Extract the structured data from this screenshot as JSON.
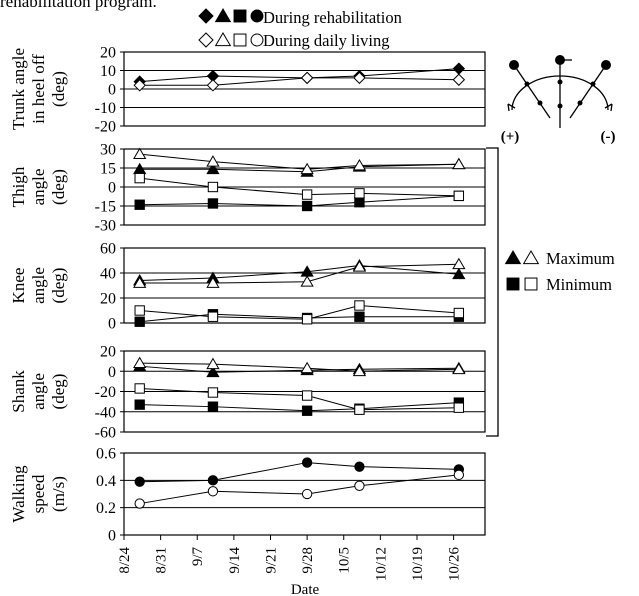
{
  "top_caption": "rehabilitation program.",
  "legend_conditions": {
    "rehab_label": "During rehabilitation",
    "daily_label": "During daily living"
  },
  "legend_maxmin": {
    "max_label": "Maximum",
    "min_label": "Minimum"
  },
  "sign_labels": {
    "plus": "(+)",
    "minus": "(-)"
  },
  "x_axis": {
    "title": "Date",
    "ticks": [
      "8/24",
      "8/31",
      "9/7",
      "9/14",
      "9/21",
      "9/28",
      "10/5",
      "10/12",
      "10/19",
      "10/26"
    ]
  },
  "colors": {
    "ink": "#000000",
    "background": "#ffffff"
  },
  "chart_data": [
    {
      "type": "line",
      "ylabel_lines": [
        "Trunk angle",
        "in heel off",
        "(deg)"
      ],
      "ylim": [
        -20,
        20
      ],
      "yticks": [
        -20,
        -10,
        0,
        10,
        20
      ],
      "grid_y": [
        -10,
        10
      ],
      "series": [
        {
          "name": "During rehabilitation",
          "marker": "diamond",
          "filled": true,
          "x": [
            "8/27",
            "9/10",
            "9/28",
            "10/8",
            "10/27"
          ],
          "values": [
            4,
            7,
            6,
            7,
            11
          ]
        },
        {
          "name": "During daily living",
          "marker": "diamond",
          "filled": false,
          "x": [
            "8/27",
            "9/10",
            "9/28",
            "10/8",
            "10/27"
          ],
          "values": [
            2,
            2,
            6,
            6,
            5
          ]
        }
      ]
    },
    {
      "type": "line",
      "ylabel_lines": [
        "Thigh",
        "angle",
        "(deg)"
      ],
      "ylim": [
        -30,
        30
      ],
      "yticks": [
        -30,
        -15,
        0,
        15,
        30
      ],
      "ytick_labels": [
        "-30",
        "-15",
        "0",
        "15",
        "30"
      ],
      "grid_y": [
        -15,
        15
      ],
      "series": [
        {
          "marker": "triangle",
          "filled": true,
          "x": [
            "8/27",
            "9/10",
            "9/28",
            "10/8",
            "10/27"
          ],
          "values": [
            14,
            14,
            12,
            16,
            18
          ]
        },
        {
          "marker": "triangle",
          "filled": false,
          "x": [
            "8/27",
            "9/10",
            "9/28",
            "10/8",
            "10/27"
          ],
          "values": [
            26,
            20,
            14,
            17,
            18
          ]
        },
        {
          "marker": "square",
          "filled": true,
          "x": [
            "8/27",
            "9/10",
            "9/28",
            "10/8",
            "10/27"
          ],
          "values": [
            -14,
            -13,
            -15,
            -12,
            -7
          ]
        },
        {
          "marker": "square",
          "filled": false,
          "x": [
            "8/27",
            "9/10",
            "9/28",
            "10/8",
            "10/27"
          ],
          "values": [
            7,
            0,
            -6,
            -5,
            -7
          ]
        }
      ]
    },
    {
      "type": "line",
      "ylabel_lines": [
        "Knee",
        "angle",
        "(deg)"
      ],
      "ylim": [
        0,
        60
      ],
      "yticks": [
        0,
        20,
        40,
        60
      ],
      "grid_y": [
        20,
        40
      ],
      "series": [
        {
          "marker": "triangle",
          "filled": true,
          "x": [
            "8/27",
            "9/10",
            "9/28",
            "10/8",
            "10/27"
          ],
          "values": [
            34,
            36,
            41,
            46,
            39
          ]
        },
        {
          "marker": "triangle",
          "filled": false,
          "x": [
            "8/27",
            "9/10",
            "9/28",
            "10/8",
            "10/27"
          ],
          "values": [
            32,
            32,
            33,
            45,
            47
          ]
        },
        {
          "marker": "square",
          "filled": true,
          "x": [
            "8/27",
            "9/10",
            "9/28",
            "10/8",
            "10/27"
          ],
          "values": [
            1,
            7,
            4,
            5,
            5
          ]
        },
        {
          "marker": "square",
          "filled": false,
          "x": [
            "8/27",
            "9/10",
            "9/28",
            "10/8",
            "10/27"
          ],
          "values": [
            10,
            5,
            3,
            14,
            8
          ]
        }
      ]
    },
    {
      "type": "line",
      "ylabel_lines": [
        "Shank",
        "angle",
        "(deg)"
      ],
      "ylim": [
        -60,
        20
      ],
      "yticks": [
        -60,
        -40,
        -20,
        0,
        20
      ],
      "grid_y": [
        -40,
        -20
      ],
      "series": [
        {
          "marker": "triangle",
          "filled": true,
          "x": [
            "8/27",
            "9/10",
            "9/28",
            "10/8",
            "10/27"
          ],
          "values": [
            5,
            -1,
            1,
            2,
            3
          ]
        },
        {
          "marker": "triangle",
          "filled": false,
          "x": [
            "8/27",
            "9/10",
            "9/28",
            "10/8",
            "10/27"
          ],
          "values": [
            8,
            7,
            3,
            0,
            2
          ]
        },
        {
          "marker": "square",
          "filled": true,
          "x": [
            "8/27",
            "9/10",
            "9/28",
            "10/8",
            "10/27"
          ],
          "values": [
            -33,
            -35,
            -39,
            -37,
            -31
          ]
        },
        {
          "marker": "square",
          "filled": false,
          "x": [
            "8/27",
            "9/10",
            "9/28",
            "10/8",
            "10/27"
          ],
          "values": [
            -17,
            -21,
            -24,
            -38,
            -36
          ]
        }
      ]
    },
    {
      "type": "line",
      "ylabel_lines": [
        "Walking",
        "speed",
        "(m/s)"
      ],
      "ylim": [
        0,
        0.6
      ],
      "yticks": [
        0,
        0.2,
        0.4,
        0.6
      ],
      "ytick_labels": [
        "0",
        "0.2",
        "0.4",
        "0.6"
      ],
      "grid_y": [
        0.2,
        0.4
      ],
      "series": [
        {
          "name": "During rehabilitation",
          "marker": "circle",
          "filled": true,
          "x": [
            "8/27",
            "9/10",
            "9/28",
            "10/8",
            "10/27"
          ],
          "values": [
            0.39,
            0.4,
            0.53,
            0.5,
            0.48
          ]
        },
        {
          "name": "During daily living",
          "marker": "circle",
          "filled": false,
          "x": [
            "8/27",
            "9/10",
            "9/28",
            "10/8",
            "10/27"
          ],
          "values": [
            0.23,
            0.32,
            0.3,
            0.36,
            0.44
          ]
        }
      ]
    }
  ]
}
